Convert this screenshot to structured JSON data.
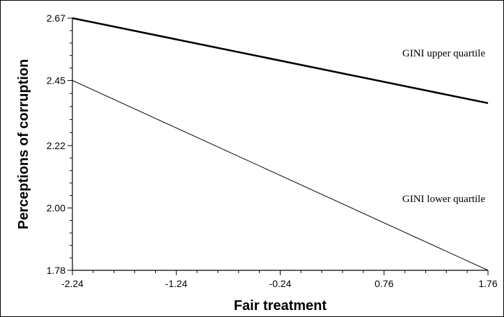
{
  "chart_data": {
    "type": "line",
    "title": "",
    "xlabel": "Fair treatment",
    "ylabel": "Perceptions of corruption",
    "xlim": [
      -2.24,
      1.76
    ],
    "ylim": [
      1.78,
      2.67
    ],
    "x_ticks": [
      "-2.24",
      "-1.24",
      "-0.24",
      "0.76",
      "1.76"
    ],
    "y_ticks": [
      "1.78",
      "2.00",
      "2.22",
      "2.45",
      "2.67"
    ],
    "grid": false,
    "legend": "none",
    "series": [
      {
        "name": "GINI upper quartile",
        "x": [
          -2.24,
          1.76
        ],
        "y": [
          2.67,
          2.37
        ]
      },
      {
        "name": "GINI lower quartile",
        "x": [
          -2.24,
          1.76
        ],
        "y": [
          2.45,
          1.78
        ]
      }
    ]
  }
}
